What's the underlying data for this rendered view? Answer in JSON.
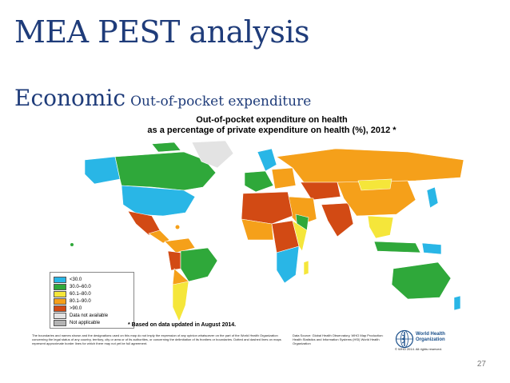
{
  "slide": {
    "title": "MEA  PEST analysis",
    "subtitle_main": "Economic",
    "subtitle_detail": "Out-of-pocket expenditure",
    "page_number": "27"
  },
  "map": {
    "title_line1": "Out-of-pocket expenditure on health",
    "title_line2": "as a percentage of private expenditure on health (%), 2012 *",
    "footnote": "* Based on data updated in August 2014.",
    "disclaimer": "The boundaries and names shown and the designations used on this map do not imply the expression of any opinion whatsoever on the part of the World Health Organization concerning the legal status of any country, territory, city or area or of its authorities, or concerning the delimitation of its frontiers or boundaries. Dotted and dashed lines on maps represent approximate border lines for which there may not yet be full agreement.",
    "source": "Data Source: Global Health Observatory, WHO Map Production: Health Statistics and Information Systems (HSI) World Health Organization",
    "organization": "World Health Organization",
    "copyright": "© WHO 2014. All rights reserved.",
    "legend": [
      {
        "label": "<30.0",
        "color": "#29b6e6"
      },
      {
        "label": "30.0–60.0",
        "color": "#2fa83a"
      },
      {
        "label": "60.1–80.0",
        "color": "#f5e63a"
      },
      {
        "label": "80.1–90.0",
        "color": "#f5a01a"
      },
      {
        "label": ">90.0",
        "color": "#d24a14"
      },
      {
        "label": "Data not available",
        "color": "#e3e3e3"
      },
      {
        "label": "Not applicable",
        "color": "#b3b3b3"
      }
    ]
  }
}
